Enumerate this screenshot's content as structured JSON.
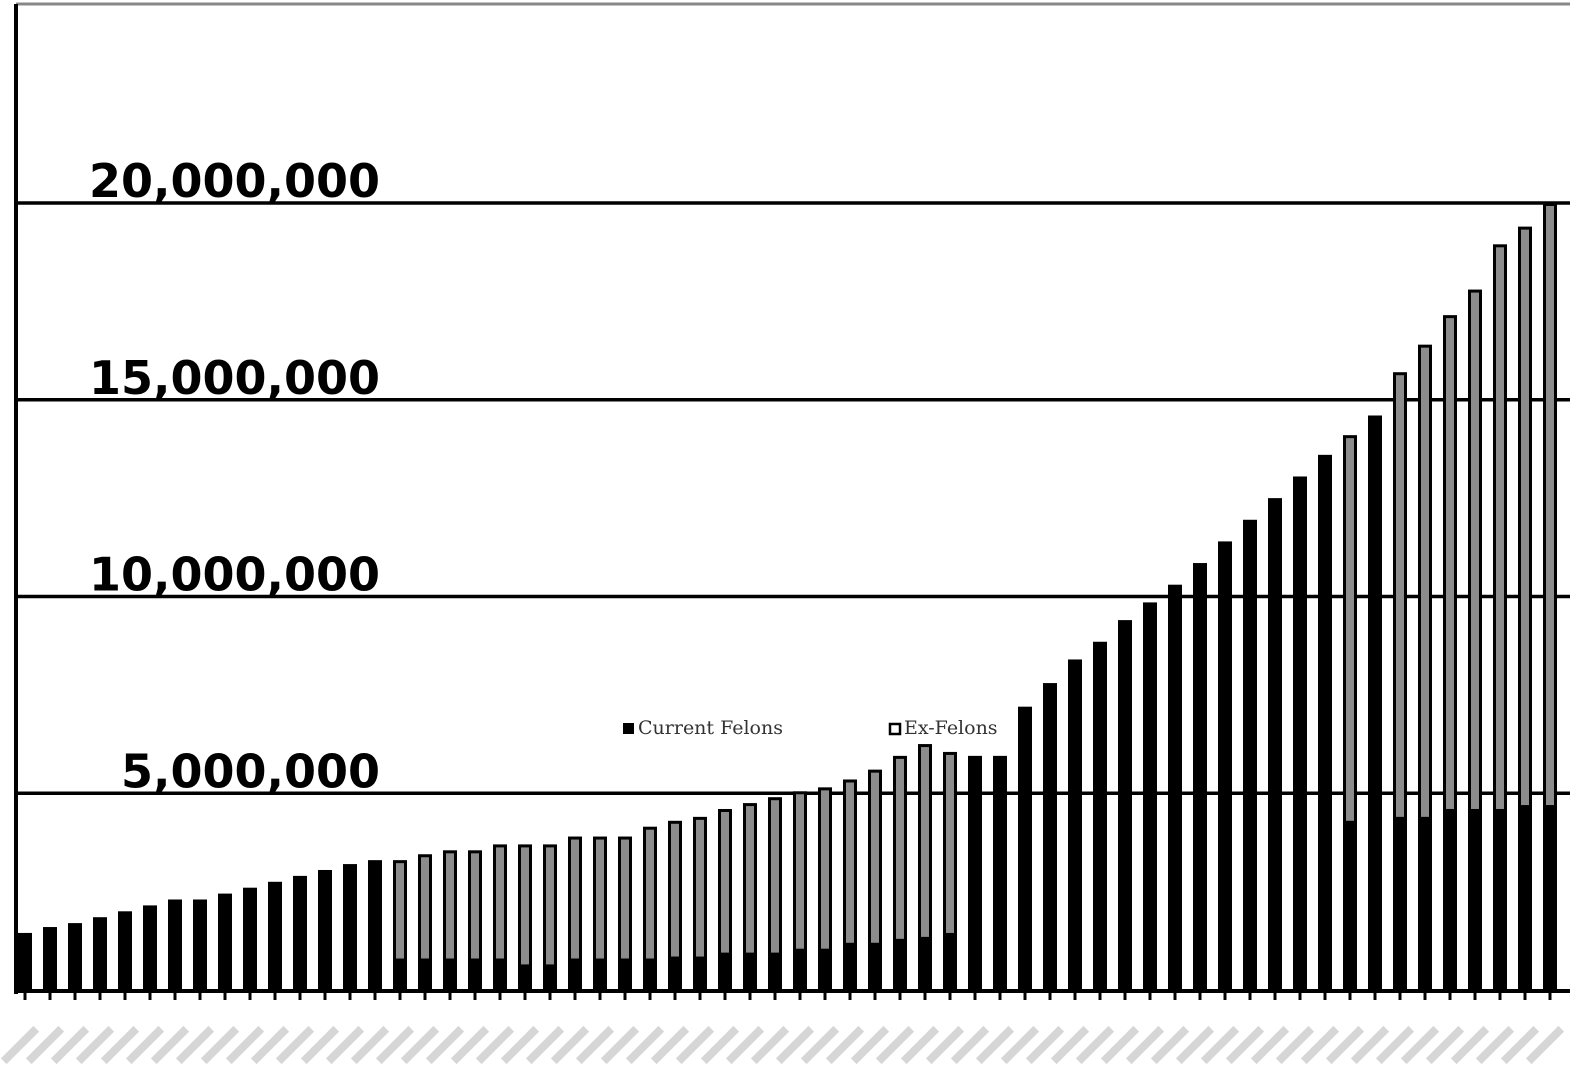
{
  "chart_data": {
    "type": "bar",
    "stacked": true,
    "title": "",
    "xlabel": "",
    "ylabel": "",
    "ylim": [
      0,
      20000000
    ],
    "y_ticks": [
      5000000,
      10000000,
      15000000,
      20000000
    ],
    "y_tick_labels": [
      "5,000,000",
      "10,000,000",
      "15,000,000",
      "20,000,000"
    ],
    "x_tick_labels_legible": false,
    "grid": "horizontal",
    "legend_position": "center",
    "categories_count": 62,
    "series": [
      {
        "name": "Current Felons",
        "color": "#000000",
        "values": [
          1450000,
          1600000,
          1700000,
          1850000,
          2000000,
          2150000,
          2300000,
          2300000,
          2450000,
          2600000,
          2750000,
          2900000,
          3050000,
          3200000,
          3300000,
          800000,
          800000,
          800000,
          800000,
          800000,
          650000,
          650000,
          800000,
          800000,
          800000,
          800000,
          850000,
          850000,
          950000,
          950000,
          950000,
          1050000,
          1050000,
          1200000,
          1200000,
          1300000,
          1350000,
          1450000,
          5950000,
          5950000,
          7200000,
          7800000,
          8400000,
          8850000,
          9400000,
          9850000,
          10300000,
          10850000,
          11400000,
          11950000,
          12500000,
          13050000,
          13600000,
          4300000,
          14600000,
          4400000,
          4400000,
          4600000,
          4600000,
          4600000,
          4700000,
          4700000
        ]
      },
      {
        "name": "Ex-Felons",
        "color": "#8c8c8c",
        "values": [
          0,
          0,
          0,
          0,
          0,
          0,
          0,
          0,
          0,
          0,
          0,
          0,
          0,
          0,
          0,
          2500000,
          2650000,
          2750000,
          2750000,
          2900000,
          3050000,
          3050000,
          3100000,
          3100000,
          3100000,
          3350000,
          3450000,
          3550000,
          3650000,
          3800000,
          3950000,
          4000000,
          4100000,
          4150000,
          4400000,
          4650000,
          4900000,
          4600000,
          0,
          0,
          0,
          0,
          0,
          0,
          0,
          0,
          0,
          0,
          0,
          0,
          0,
          0,
          0,
          9800000,
          0,
          11300000,
          12000000,
          12550000,
          13200000,
          14350000,
          14700000,
          15300000
        ]
      }
    ]
  }
}
